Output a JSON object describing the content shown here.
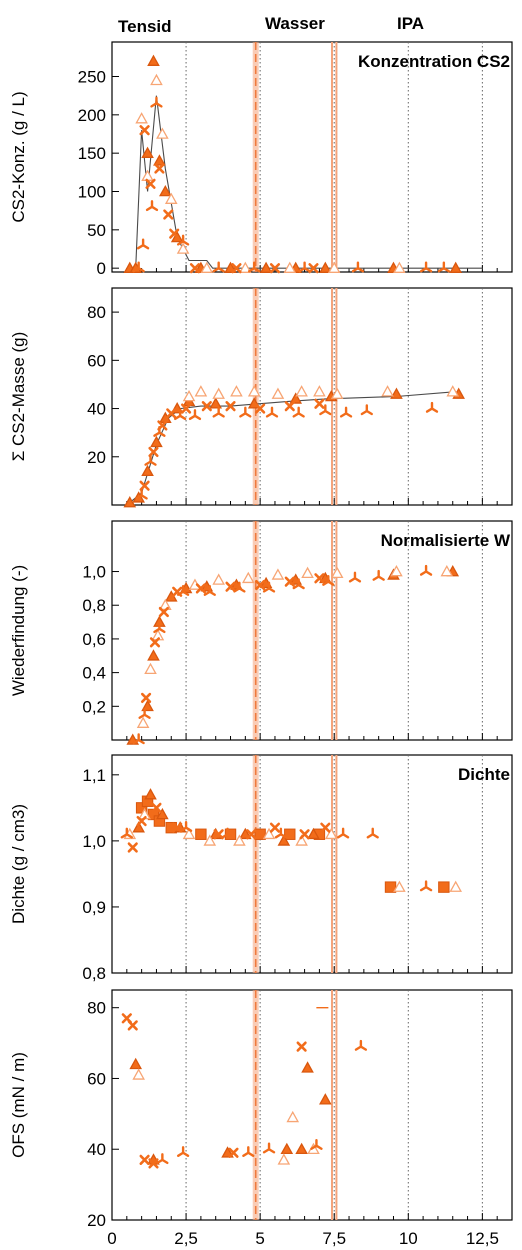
{
  "headers": {
    "tensid": "Tensid",
    "wasser": "Wasser",
    "ipa": "IPA"
  },
  "colors": {
    "series": "#f26c1a",
    "series_light": "#f7a574",
    "phase_line": "#f4a37a",
    "line": "#4a4a4a",
    "grid": "#666666"
  },
  "chart_data": [
    {
      "type": "scatter",
      "title": "Konzentration CS2",
      "ylabel": "CS2-Konz. (g / L)",
      "ylim": [
        -5,
        295
      ],
      "yticks": [
        0,
        50,
        100,
        150,
        200,
        250
      ],
      "ytick_labels": [
        "0",
        "50",
        "100",
        "150",
        "200",
        "250"
      ],
      "series": [
        {
          "marker": "triangle-filled",
          "points": [
            [
              0.6,
              0
            ],
            [
              0.8,
              0
            ],
            [
              1.2,
              150
            ],
            [
              1.4,
              270
            ],
            [
              1.6,
              140
            ],
            [
              1.8,
              100
            ],
            [
              2.2,
              40
            ],
            [
              3.0,
              0
            ],
            [
              4.0,
              0
            ],
            [
              5.2,
              0
            ],
            [
              6.2,
              0
            ],
            [
              7.2,
              0
            ],
            [
              9.5,
              0
            ],
            [
              11.6,
              0
            ]
          ]
        },
        {
          "marker": "triangle-open",
          "points": [
            [
              1.0,
              195
            ],
            [
              1.2,
              120
            ],
            [
              1.5,
              245
            ],
            [
              1.7,
              175
            ],
            [
              2.0,
              90
            ],
            [
              2.4,
              25
            ],
            [
              3.2,
              0
            ],
            [
              4.5,
              0
            ],
            [
              6.0,
              0
            ],
            [
              7.5,
              0
            ],
            [
              9.7,
              0
            ]
          ]
        },
        {
          "marker": "cross",
          "points": [
            [
              1.1,
              180
            ],
            [
              1.3,
              110
            ],
            [
              1.6,
              130
            ],
            [
              1.9,
              70
            ],
            [
              2.1,
              45
            ],
            [
              2.8,
              0
            ],
            [
              4.2,
              0
            ],
            [
              5.5,
              0
            ],
            [
              6.8,
              0
            ]
          ]
        },
        {
          "marker": "tripod",
          "points": [
            [
              0.9,
              0
            ],
            [
              1.05,
              30
            ],
            [
              1.35,
              80
            ],
            [
              1.5,
              215
            ],
            [
              2.4,
              35
            ],
            [
              3.6,
              0
            ],
            [
              4.8,
              0
            ],
            [
              6.5,
              0
            ],
            [
              8.3,
              0
            ],
            [
              10.6,
              0
            ],
            [
              11.2,
              0
            ]
          ]
        }
      ],
      "line": [
        [
          0.8,
          0
        ],
        [
          1.0,
          180
        ],
        [
          1.2,
          100
        ],
        [
          1.5,
          225
        ],
        [
          1.8,
          130
        ],
        [
          2.2,
          40
        ],
        [
          2.6,
          10
        ],
        [
          3.2,
          10
        ],
        [
          3.4,
          0
        ],
        [
          12.5,
          0
        ]
      ]
    },
    {
      "type": "scatter",
      "title": "",
      "ylabel": "Σ CS2-Masse (g)",
      "ylim": [
        0,
        90
      ],
      "yticks": [
        20,
        40,
        60,
        80
      ],
      "ytick_labels": [
        "20",
        "40",
        "60",
        "80"
      ],
      "series": [
        {
          "marker": "triangle-filled",
          "points": [
            [
              0.6,
              1
            ],
            [
              0.9,
              3
            ],
            [
              1.2,
              14
            ],
            [
              1.5,
              26
            ],
            [
              1.8,
              36
            ],
            [
              2.2,
              40
            ],
            [
              2.6,
              43
            ],
            [
              3.5,
              42
            ],
            [
              4.8,
              42
            ],
            [
              6.2,
              44
            ],
            [
              7.4,
              45
            ],
            [
              9.6,
              46
            ],
            [
              11.7,
              46
            ]
          ]
        },
        {
          "marker": "triangle-open",
          "points": [
            [
              2.6,
              45
            ],
            [
              3.0,
              47
            ],
            [
              3.6,
              46
            ],
            [
              4.2,
              47
            ],
            [
              4.8,
              47
            ],
            [
              5.6,
              46
            ],
            [
              6.4,
              47
            ],
            [
              7.0,
              47
            ],
            [
              7.6,
              46
            ],
            [
              9.3,
              47
            ],
            [
              11.5,
              47
            ]
          ]
        },
        {
          "marker": "cross",
          "points": [
            [
              1.1,
              8
            ],
            [
              1.4,
              22
            ],
            [
              1.7,
              33
            ],
            [
              2.0,
              38
            ],
            [
              2.5,
              40
            ],
            [
              3.2,
              41
            ],
            [
              4.0,
              41
            ],
            [
              5.0,
              40
            ],
            [
              6.0,
              41
            ],
            [
              7.0,
              42
            ]
          ]
        },
        {
          "marker": "tripod",
          "points": [
            [
              1.0,
              4
            ],
            [
              1.3,
              18
            ],
            [
              1.6,
              30
            ],
            [
              2.3,
              37
            ],
            [
              2.8,
              37
            ],
            [
              3.6,
              38
            ],
            [
              4.5,
              38
            ],
            [
              5.4,
              38
            ],
            [
              6.3,
              38
            ],
            [
              7.2,
              39
            ],
            [
              7.9,
              38
            ],
            [
              8.6,
              39
            ],
            [
              10.8,
              40
            ]
          ]
        }
      ],
      "line": [
        [
          0.6,
          1
        ],
        [
          1.0,
          5
        ],
        [
          1.5,
          25
        ],
        [
          1.9,
          36
        ],
        [
          2.3,
          40
        ],
        [
          3.0,
          41
        ],
        [
          4.0,
          41
        ],
        [
          5.0,
          42
        ],
        [
          6.0,
          43
        ],
        [
          7.2,
          44
        ],
        [
          9.6,
          45
        ],
        [
          11.6,
          47
        ]
      ]
    },
    {
      "type": "scatter",
      "title": "Normalisierte W",
      "ylabel": "Wiederfindung (-)",
      "ylim": [
        0,
        1.3
      ],
      "yticks": [
        0.2,
        0.4,
        0.6,
        0.8,
        1.0
      ],
      "ytick_labels": [
        "0,2",
        "0,4",
        "0,6",
        "0,8",
        "1,0"
      ],
      "series": [
        {
          "marker": "triangle-filled",
          "points": [
            [
              0.7,
              0
            ],
            [
              1.2,
              0.2
            ],
            [
              1.4,
              0.5
            ],
            [
              1.6,
              0.7
            ],
            [
              2.0,
              0.85
            ],
            [
              2.5,
              0.9
            ],
            [
              3.2,
              0.91
            ],
            [
              4.2,
              0.92
            ],
            [
              5.2,
              0.93
            ],
            [
              6.2,
              0.95
            ],
            [
              7.2,
              0.96
            ],
            [
              9.5,
              0.98
            ],
            [
              11.5,
              1.0
            ]
          ]
        },
        {
          "marker": "triangle-open",
          "points": [
            [
              1.05,
              0.1
            ],
            [
              1.3,
              0.42
            ],
            [
              1.55,
              0.62
            ],
            [
              1.8,
              0.8
            ],
            [
              2.8,
              0.92
            ],
            [
              3.6,
              0.95
            ],
            [
              4.6,
              0.96
            ],
            [
              5.6,
              0.98
            ],
            [
              6.6,
              0.99
            ],
            [
              7.6,
              0.99
            ],
            [
              9.6,
              1.0
            ],
            [
              11.3,
              1.0
            ]
          ]
        },
        {
          "marker": "cross",
          "points": [
            [
              1.15,
              0.25
            ],
            [
              1.45,
              0.58
            ],
            [
              1.75,
              0.76
            ],
            [
              2.2,
              0.88
            ],
            [
              3.0,
              0.9
            ],
            [
              4.0,
              0.91
            ],
            [
              5.0,
              0.92
            ],
            [
              6.0,
              0.94
            ],
            [
              7.0,
              0.96
            ]
          ]
        },
        {
          "marker": "tripod",
          "points": [
            [
              0.9,
              0
            ],
            [
              1.1,
              0.15
            ],
            [
              1.6,
              0.66
            ],
            [
              2.4,
              0.88
            ],
            [
              3.3,
              0.88
            ],
            [
              4.3,
              0.9
            ],
            [
              5.3,
              0.9
            ],
            [
              6.3,
              0.92
            ],
            [
              7.3,
              0.94
            ],
            [
              8.2,
              0.96
            ],
            [
              9.0,
              0.97
            ],
            [
              10.6,
              1.0
            ]
          ]
        }
      ],
      "line": []
    },
    {
      "type": "scatter",
      "title": "Dichte",
      "ylabel": "Dichte (g / cm3)",
      "ylim": [
        0.8,
        1.13
      ],
      "yticks": [
        0.8,
        0.9,
        1.0,
        1.1
      ],
      "ytick_labels": [
        "0,8",
        "0,9",
        "1,0",
        "1,1"
      ],
      "series": [
        {
          "marker": "square-filled",
          "points": [
            [
              1.0,
              1.05
            ],
            [
              1.2,
              1.06
            ],
            [
              1.4,
              1.04
            ],
            [
              1.6,
              1.03
            ],
            [
              2.0,
              1.02
            ],
            [
              3.0,
              1.01
            ],
            [
              4.0,
              1.01
            ],
            [
              5.0,
              1.01
            ],
            [
              6.0,
              1.01
            ],
            [
              7.0,
              1.01
            ],
            [
              9.4,
              0.93
            ],
            [
              11.2,
              0.93
            ]
          ]
        },
        {
          "marker": "triangle-filled",
          "points": [
            [
              0.9,
              1.02
            ],
            [
              1.3,
              1.07
            ],
            [
              1.7,
              1.04
            ],
            [
              2.3,
              1.02
            ],
            [
              3.5,
              1.01
            ],
            [
              4.5,
              1.01
            ],
            [
              5.8,
              1.0
            ],
            [
              6.8,
              1.01
            ]
          ]
        },
        {
          "marker": "triangle-open",
          "points": [
            [
              0.6,
              1.01
            ],
            [
              1.1,
              1.04
            ],
            [
              2.6,
              1.01
            ],
            [
              3.3,
              1.0
            ],
            [
              4.3,
              1.0
            ],
            [
              5.3,
              1.01
            ],
            [
              6.4,
              1.0
            ],
            [
              7.4,
              1.01
            ],
            [
              9.7,
              0.93
            ],
            [
              11.6,
              0.93
            ]
          ]
        },
        {
          "marker": "cross",
          "points": [
            [
              0.7,
              0.99
            ],
            [
              1.0,
              1.03
            ],
            [
              1.5,
              1.05
            ],
            [
              2.2,
              1.02
            ],
            [
              3.6,
              1.01
            ],
            [
              4.7,
              1.01
            ],
            [
              5.5,
              1.02
            ],
            [
              6.5,
              1.01
            ],
            [
              7.2,
              1.02
            ]
          ]
        },
        {
          "marker": "tripod",
          "points": [
            [
              0.5,
              1.01
            ],
            [
              2.5,
              1.02
            ],
            [
              3.9,
              1.01
            ],
            [
              5.7,
              1.01
            ],
            [
              7.8,
              1.01
            ],
            [
              8.8,
              1.01
            ],
            [
              10.6,
              0.93
            ]
          ]
        }
      ],
      "line": []
    },
    {
      "type": "scatter",
      "title": "",
      "ylabel": "OFS (mN / m)",
      "ylim": [
        20,
        85
      ],
      "yticks": [
        20,
        40,
        60,
        80
      ],
      "ytick_labels": [
        "20",
        "40",
        "60",
        "80"
      ],
      "xlim": [
        0,
        13.5
      ],
      "xticks": [
        0,
        2.5,
        5,
        7.5,
        10,
        12.5
      ],
      "xtick_labels": [
        "0",
        "2,5",
        "5",
        "7,5",
        "10",
        "12,5"
      ],
      "series": [
        {
          "marker": "triangle-filled",
          "points": [
            [
              0.8,
              64
            ],
            [
              1.4,
              37
            ],
            [
              3.9,
              39
            ],
            [
              5.9,
              40
            ],
            [
              6.4,
              40
            ],
            [
              6.6,
              63
            ],
            [
              7.2,
              54
            ]
          ]
        },
        {
          "marker": "triangle-open",
          "points": [
            [
              0.9,
              61
            ],
            [
              6.1,
              49
            ],
            [
              6.8,
              40
            ],
            [
              5.8,
              37
            ]
          ]
        },
        {
          "marker": "cross",
          "points": [
            [
              0.5,
              77
            ],
            [
              0.7,
              75
            ],
            [
              1.1,
              37
            ],
            [
              1.4,
              36
            ],
            [
              4.1,
              39
            ],
            [
              6.4,
              69
            ]
          ]
        },
        {
          "marker": "tripod",
          "points": [
            [
              1.7,
              37
            ],
            [
              2.4,
              39
            ],
            [
              4.6,
              39
            ],
            [
              5.3,
              40
            ],
            [
              6.9,
              41
            ],
            [
              8.4,
              69
            ]
          ]
        }
      ],
      "dashes": [
        [
          7.1,
          80
        ]
      ],
      "line": []
    }
  ],
  "x_axis": {
    "xlim": [
      0,
      13.5
    ],
    "grid_x": [
      2.5,
      5,
      7.5,
      10,
      12.5
    ],
    "phase_lines": [
      4.85,
      7.5
    ]
  }
}
